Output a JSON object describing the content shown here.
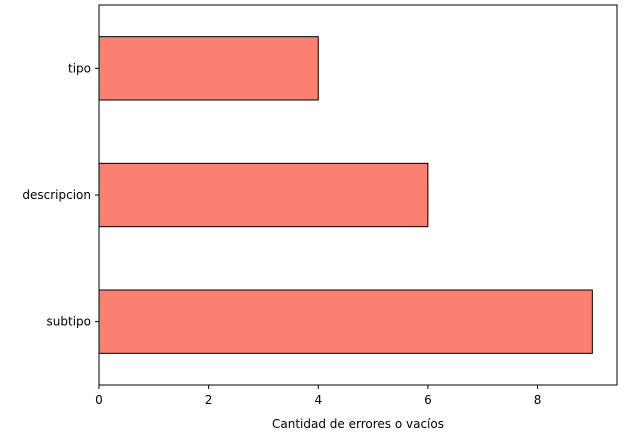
{
  "chart_data": {
    "type": "bar",
    "orientation": "horizontal",
    "title": "",
    "xlabel": "Cantidad de errores o vacíos",
    "ylabel": "",
    "categories": [
      "subtipo",
      "descripcion",
      "tipo"
    ],
    "values": [
      9,
      6,
      4
    ],
    "x_ticks": [
      0,
      2,
      4,
      6,
      8
    ],
    "xlim": [
      0,
      9.45
    ],
    "grid": false,
    "legend": "none",
    "bar_color": "#fa8072",
    "bar_edge_color": "#000000"
  }
}
